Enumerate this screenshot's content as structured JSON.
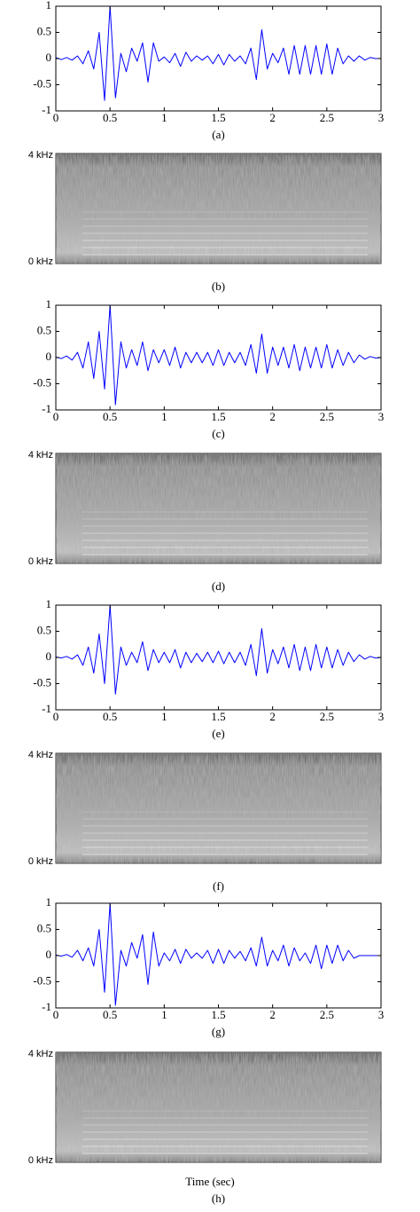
{
  "chart_data": [
    {
      "type": "line",
      "caption": "(a)",
      "x": [
        0,
        0.05,
        0.1,
        0.15,
        0.2,
        0.25,
        0.3,
        0.35,
        0.4,
        0.45,
        0.5,
        0.55,
        0.6,
        0.65,
        0.7,
        0.75,
        0.8,
        0.85,
        0.9,
        0.95,
        1,
        1.05,
        1.1,
        1.15,
        1.2,
        1.25,
        1.3,
        1.35,
        1.4,
        1.45,
        1.5,
        1.55,
        1.6,
        1.65,
        1.7,
        1.75,
        1.8,
        1.85,
        1.9,
        1.95,
        2,
        2.05,
        2.1,
        2.15,
        2.2,
        2.25,
        2.3,
        2.35,
        2.4,
        2.45,
        2.5,
        2.55,
        2.6,
        2.65,
        2.7,
        2.75,
        2.8,
        2.85,
        2.9,
        2.95,
        3
      ],
      "series": [
        {
          "color": "#0000ff",
          "values": [
            0.02,
            -0.02,
            0.02,
            -0.03,
            0.05,
            -0.1,
            0.15,
            -0.2,
            0.5,
            -0.8,
            1,
            -0.75,
            0.1,
            -0.25,
            0.2,
            -0.05,
            0.3,
            -0.45,
            0.3,
            -0.05,
            0.03,
            -0.08,
            0.1,
            -0.15,
            0.12,
            -0.05,
            0.05,
            -0.03,
            0.05,
            -0.1,
            0.08,
            -0.12,
            0.08,
            -0.05,
            0.05,
            -0.1,
            0.2,
            -0.4,
            0.55,
            -0.2,
            0.1,
            -0.08,
            0.2,
            -0.3,
            0.25,
            -0.3,
            0.25,
            -0.3,
            0.25,
            -0.3,
            0.28,
            -0.3,
            0.2,
            -0.1,
            0.05,
            -0.05,
            0.05,
            -0.03,
            0.02,
            0,
            0
          ]
        }
      ],
      "xlim": [
        0,
        3
      ],
      "ylim": [
        -1,
        1
      ],
      "xticks": [
        0,
        0.5,
        1,
        1.5,
        2,
        2.5,
        3
      ],
      "yticks": [
        -1,
        -0.5,
        0,
        0.5,
        1
      ]
    },
    {
      "type": "line",
      "caption": "(c)",
      "x": [
        0,
        0.05,
        0.1,
        0.15,
        0.2,
        0.25,
        0.3,
        0.35,
        0.4,
        0.45,
        0.5,
        0.55,
        0.6,
        0.65,
        0.7,
        0.75,
        0.8,
        0.85,
        0.9,
        0.95,
        1,
        1.05,
        1.1,
        1.15,
        1.2,
        1.25,
        1.3,
        1.35,
        1.4,
        1.45,
        1.5,
        1.55,
        1.6,
        1.65,
        1.7,
        1.75,
        1.8,
        1.85,
        1.9,
        1.95,
        2,
        2.05,
        2.1,
        2.15,
        2.2,
        2.25,
        2.3,
        2.35,
        2.4,
        2.45,
        2.5,
        2.55,
        2.6,
        2.65,
        2.7,
        2.75,
        2.8,
        2.85,
        2.9,
        2.95,
        3
      ],
      "series": [
        {
          "color": "#0000ff",
          "values": [
            0.01,
            -0.02,
            0.03,
            -0.05,
            0.1,
            -0.2,
            0.3,
            -0.4,
            0.5,
            -0.6,
            1,
            -0.9,
            0.3,
            -0.2,
            0.15,
            -0.15,
            0.3,
            -0.25,
            0.15,
            -0.1,
            0.15,
            -0.15,
            0.2,
            -0.2,
            0.1,
            -0.1,
            0.1,
            -0.1,
            0.1,
            -0.15,
            0.15,
            -0.15,
            0.1,
            -0.1,
            0.1,
            -0.15,
            0.25,
            -0.3,
            0.45,
            -0.3,
            0.2,
            -0.15,
            0.2,
            -0.2,
            0.25,
            -0.25,
            0.2,
            -0.2,
            0.2,
            -0.2,
            0.25,
            -0.2,
            0.15,
            -0.15,
            0.1,
            -0.1,
            0.05,
            -0.03,
            0.02,
            -0.01,
            0
          ]
        }
      ],
      "xlim": [
        0,
        3
      ],
      "ylim": [
        -1,
        1
      ],
      "xticks": [
        0,
        0.5,
        1,
        1.5,
        2,
        2.5,
        3
      ],
      "yticks": [
        -1,
        -0.5,
        0,
        0.5,
        1
      ]
    },
    {
      "type": "line",
      "caption": "(e)",
      "x": [
        0,
        0.05,
        0.1,
        0.15,
        0.2,
        0.25,
        0.3,
        0.35,
        0.4,
        0.45,
        0.5,
        0.55,
        0.6,
        0.65,
        0.7,
        0.75,
        0.8,
        0.85,
        0.9,
        0.95,
        1,
        1.05,
        1.1,
        1.15,
        1.2,
        1.25,
        1.3,
        1.35,
        1.4,
        1.45,
        1.5,
        1.55,
        1.6,
        1.65,
        1.7,
        1.75,
        1.8,
        1.85,
        1.9,
        1.95,
        2,
        2.05,
        2.1,
        2.15,
        2.2,
        2.25,
        2.3,
        2.35,
        2.4,
        2.45,
        2.5,
        2.55,
        2.6,
        2.65,
        2.7,
        2.75,
        2.8,
        2.85,
        2.9,
        2.95,
        3
      ],
      "series": [
        {
          "color": "#0000ff",
          "values": [
            0.01,
            -0.01,
            0.02,
            -0.03,
            0.05,
            -0.15,
            0.2,
            -0.3,
            0.45,
            -0.5,
            1,
            -0.7,
            0.2,
            -0.15,
            0.1,
            -0.1,
            0.3,
            -0.25,
            0.15,
            -0.1,
            0.1,
            -0.1,
            0.15,
            -0.2,
            0.1,
            -0.1,
            0.08,
            -0.08,
            0.1,
            -0.1,
            0.12,
            -0.12,
            0.1,
            -0.1,
            0.1,
            -0.15,
            0.25,
            -0.35,
            0.55,
            -0.3,
            0.15,
            -0.12,
            0.2,
            -0.2,
            0.25,
            -0.25,
            0.2,
            -0.25,
            0.25,
            -0.2,
            0.2,
            -0.2,
            0.15,
            -0.15,
            0.1,
            -0.08,
            0.05,
            -0.03,
            0.02,
            -0.01,
            0
          ]
        }
      ],
      "xlim": [
        0,
        3
      ],
      "ylim": [
        -1,
        1
      ],
      "xticks": [
        0,
        0.5,
        1,
        1.5,
        2,
        2.5,
        3
      ],
      "yticks": [
        -1,
        -0.5,
        0,
        0.5,
        1
      ]
    },
    {
      "type": "line",
      "caption": "(g)",
      "x": [
        0,
        0.05,
        0.1,
        0.15,
        0.2,
        0.25,
        0.3,
        0.35,
        0.4,
        0.45,
        0.5,
        0.55,
        0.6,
        0.65,
        0.7,
        0.75,
        0.8,
        0.85,
        0.9,
        0.95,
        1,
        1.05,
        1.1,
        1.15,
        1.2,
        1.25,
        1.3,
        1.35,
        1.4,
        1.45,
        1.5,
        1.55,
        1.6,
        1.65,
        1.7,
        1.75,
        1.8,
        1.85,
        1.9,
        1.95,
        2,
        2.05,
        2.1,
        2.15,
        2.2,
        2.25,
        2.3,
        2.35,
        2.4,
        2.45,
        2.5,
        2.55,
        2.6,
        2.65,
        2.7,
        2.75,
        2.8,
        2.85,
        2.9,
        2.95,
        3
      ],
      "series": [
        {
          "color": "#0000ff",
          "values": [
            0.01,
            -0.01,
            0.02,
            -0.03,
            0.1,
            -0.1,
            0.15,
            -0.2,
            0.5,
            -0.7,
            1,
            -0.95,
            0.1,
            -0.2,
            0.25,
            -0.05,
            0.4,
            -0.55,
            0.45,
            -0.2,
            0.05,
            -0.1,
            0.12,
            -0.15,
            0.12,
            -0.05,
            0.05,
            -0.05,
            0.1,
            -0.15,
            0.12,
            -0.15,
            0.1,
            -0.05,
            0.08,
            -0.1,
            0.15,
            -0.2,
            0.35,
            -0.2,
            0.1,
            -0.1,
            0.2,
            -0.2,
            0.15,
            -0.1,
            0.05,
            -0.15,
            0.2,
            -0.25,
            0.2,
            -0.15,
            0.2,
            -0.1,
            0.1,
            -0.05,
            0,
            0,
            0,
            0,
            0
          ]
        }
      ],
      "xlim": [
        0,
        3
      ],
      "ylim": [
        -1,
        1
      ],
      "xticks": [
        0,
        0.5,
        1,
        1.5,
        2,
        2.5,
        3
      ],
      "yticks": [
        -1,
        -0.5,
        0,
        0.5,
        1
      ]
    }
  ],
  "spectrograms": [
    {
      "top_label": "4 kHz",
      "bottom_label": "0 kHz",
      "caption": "(b)"
    },
    {
      "top_label": "4 kHz",
      "bottom_label": "0 kHz",
      "caption": "(d)"
    },
    {
      "top_label": "4 kHz",
      "bottom_label": "0 kHz",
      "caption": "(f)"
    },
    {
      "top_label": "4 kHz",
      "bottom_label": "0 kHz",
      "caption": "(h)"
    }
  ],
  "x_label": "Time (sec)"
}
